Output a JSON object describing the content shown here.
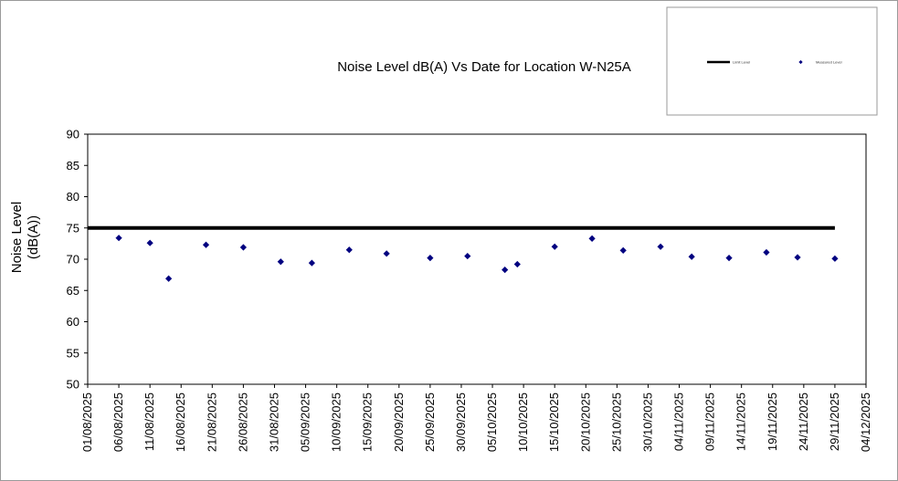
{
  "chart_data": {
    "type": "scatter",
    "title": "Noise Level dB(A) Vs Date for Location W-N25A",
    "ylabel_lines": [
      "Noise Level",
      "(dB(A))"
    ],
    "xlabel": "",
    "ylim": [
      50,
      90
    ],
    "yticks": [
      50,
      55,
      60,
      65,
      70,
      75,
      80,
      85,
      90
    ],
    "xlim": [
      "01/08/2025",
      "04/12/2025"
    ],
    "xtick_labels": [
      "01/08/2025",
      "06/08/2025",
      "11/08/2025",
      "16/08/2025",
      "21/08/2025",
      "26/08/2025",
      "31/08/2025",
      "05/09/2025",
      "10/09/2025",
      "15/09/2025",
      "20/09/2025",
      "25/09/2025",
      "30/09/2025",
      "05/10/2025",
      "10/10/2025",
      "15/10/2025",
      "20/10/2025",
      "25/10/2025",
      "30/10/2025",
      "04/11/2025",
      "09/11/2025",
      "14/11/2025",
      "19/11/2025",
      "24/11/2025",
      "29/11/2025",
      "04/12/2025"
    ],
    "grid": false,
    "legend_position": "top-right",
    "series": [
      {
        "name": "Limit Level",
        "kind": "line",
        "color": "#000000",
        "points": [
          {
            "x": "01/08/2025",
            "y": 75
          },
          {
            "x": "29/11/2025",
            "y": 75
          }
        ]
      },
      {
        "name": "Measured Level",
        "kind": "marker",
        "color": "#000080",
        "points": [
          {
            "x": "06/08/2025",
            "y": 73.4
          },
          {
            "x": "11/08/2025",
            "y": 72.6
          },
          {
            "x": "14/08/2025",
            "y": 66.9
          },
          {
            "x": "20/08/2025",
            "y": 72.3
          },
          {
            "x": "26/08/2025",
            "y": 71.9
          },
          {
            "x": "01/09/2025",
            "y": 69.6
          },
          {
            "x": "06/09/2025",
            "y": 69.4
          },
          {
            "x": "12/09/2025",
            "y": 71.5
          },
          {
            "x": "18/09/2025",
            "y": 70.9
          },
          {
            "x": "25/09/2025",
            "y": 70.2
          },
          {
            "x": "01/10/2025",
            "y": 70.5
          },
          {
            "x": "07/10/2025",
            "y": 68.3
          },
          {
            "x": "09/10/2025",
            "y": 69.2
          },
          {
            "x": "15/10/2025",
            "y": 72.0
          },
          {
            "x": "21/10/2025",
            "y": 73.3
          },
          {
            "x": "26/10/2025",
            "y": 71.4
          },
          {
            "x": "01/11/2025",
            "y": 72.0
          },
          {
            "x": "06/11/2025",
            "y": 70.4
          },
          {
            "x": "12/11/2025",
            "y": 70.2
          },
          {
            "x": "18/11/2025",
            "y": 71.1
          },
          {
            "x": "23/11/2025",
            "y": 70.3
          },
          {
            "x": "29/11/2025",
            "y": 70.1
          }
        ]
      }
    ]
  }
}
